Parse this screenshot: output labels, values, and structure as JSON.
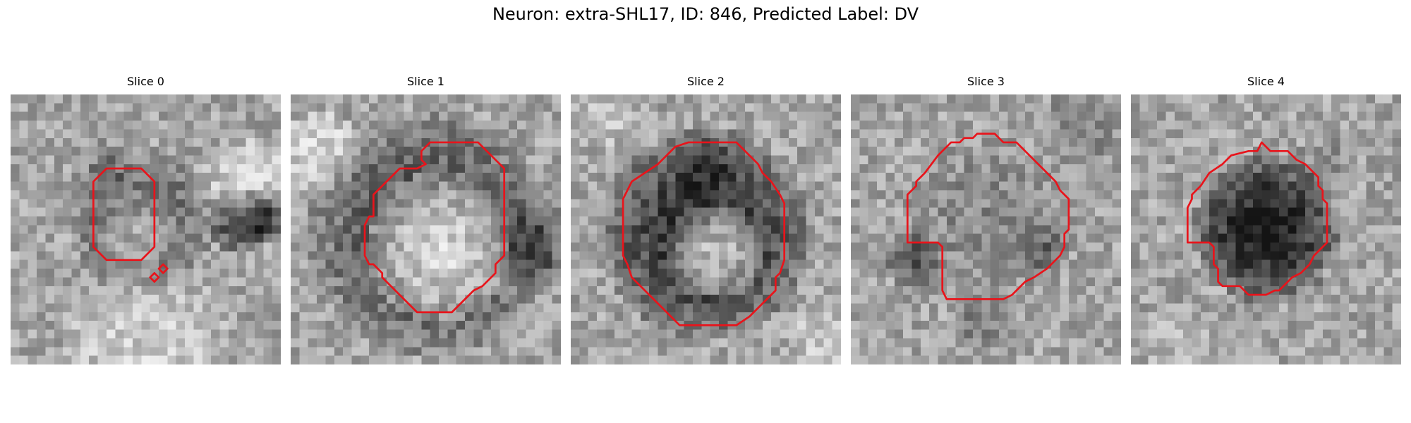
{
  "title": "Neuron: extra-SHL17, ID: 846, Predicted Label: DV",
  "contour_color": "#e8141b",
  "panels": [
    {
      "label": "Slice 0",
      "seed": 11,
      "blobs": [
        {
          "cx": 14.5,
          "cy": 14,
          "r": 8.5,
          "delta": -55
        },
        {
          "cx": 27,
          "cy": 9.5,
          "r": 5.5,
          "delta": 40
        },
        {
          "cx": 10,
          "cy": 8,
          "r": 4,
          "delta": -20
        },
        {
          "cx": 14,
          "cy": 15,
          "r": 4.5,
          "delta": 55
        },
        {
          "cx": 26,
          "cy": 14,
          "r": 4,
          "delta": -80
        },
        {
          "cx": 30,
          "cy": 13.5,
          "r": 3.5,
          "delta": -70
        },
        {
          "cx": 15,
          "cy": 29,
          "r": 10,
          "delta": 35
        }
      ],
      "contours": [
        [
          [
            9.5,
            10
          ],
          [
            11,
            8.5
          ],
          [
            15,
            8.5
          ],
          [
            16.5,
            10
          ],
          [
            16.5,
            17.5
          ],
          [
            15,
            19
          ],
          [
            11,
            19
          ],
          [
            9.5,
            17.5
          ]
        ],
        [
          [
            16,
            21
          ],
          [
            16.5,
            20.5
          ],
          [
            17,
            21
          ],
          [
            16.5,
            21.5
          ]
        ],
        [
          [
            17,
            20
          ],
          [
            17.5,
            19.5
          ],
          [
            18,
            20
          ],
          [
            17.5,
            20.5
          ]
        ]
      ]
    },
    {
      "label": "Slice 1",
      "seed": 23,
      "blobs": [
        {
          "cx": 15.5,
          "cy": 15.5,
          "r": 14,
          "delta": -75
        },
        {
          "cx": 16.5,
          "cy": 17,
          "r": 8.5,
          "delta": 110
        },
        {
          "cx": 28,
          "cy": 17,
          "r": 5,
          "delta": -55
        },
        {
          "cx": 3,
          "cy": 6,
          "r": 5,
          "delta": 45
        }
      ],
      "contours": [
        [
          [
            15,
            6.5
          ],
          [
            16,
            5.5
          ],
          [
            21.5,
            5.5
          ],
          [
            22.5,
            6.5
          ],
          [
            23.5,
            7.5
          ],
          [
            24.5,
            8.5
          ],
          [
            24.5,
            18.5
          ],
          [
            23.5,
            19.5
          ],
          [
            23.5,
            20.5
          ],
          [
            22,
            22
          ],
          [
            21,
            22.5
          ],
          [
            19.5,
            24
          ],
          [
            18.5,
            25
          ],
          [
            14.5,
            25
          ],
          [
            12.5,
            23
          ],
          [
            10.5,
            21
          ],
          [
            10.5,
            20.5
          ],
          [
            9.5,
            19.5
          ],
          [
            9,
            19.5
          ],
          [
            8.5,
            18.5
          ],
          [
            8.5,
            15
          ],
          [
            9,
            14
          ],
          [
            9.5,
            14
          ],
          [
            9.5,
            11.5
          ],
          [
            11,
            10
          ],
          [
            12.5,
            8.5
          ],
          [
            14.5,
            8.5
          ],
          [
            15.5,
            8
          ],
          [
            15,
            7.5
          ]
        ]
      ]
    },
    {
      "label": "Slice 2",
      "seed": 37,
      "blobs": [
        {
          "cx": 15,
          "cy": 15.5,
          "r": 12,
          "delta": -105
        },
        {
          "cx": 16,
          "cy": 17.5,
          "r": 5.5,
          "delta": 120
        },
        {
          "cx": 15,
          "cy": 8,
          "r": 4,
          "delta": -25
        },
        {
          "cx": 3,
          "cy": 2,
          "r": 4,
          "delta": 30
        },
        {
          "cx": 28,
          "cy": 28,
          "r": 4,
          "delta": 30
        }
      ],
      "contours": [
        [
          [
            10,
            8
          ],
          [
            12,
            6
          ],
          [
            13.5,
            5.5
          ],
          [
            19,
            5.5
          ],
          [
            19.5,
            6
          ],
          [
            21.5,
            8
          ],
          [
            22,
            9
          ],
          [
            23,
            10
          ],
          [
            24,
            11.5
          ],
          [
            24.5,
            12.5
          ],
          [
            24.5,
            19
          ],
          [
            24,
            20.5
          ],
          [
            23.5,
            21
          ],
          [
            23.5,
            22.5
          ],
          [
            22,
            24
          ],
          [
            20.5,
            25.5
          ],
          [
            19,
            26.5
          ],
          [
            12.5,
            26.5
          ],
          [
            10,
            24
          ],
          [
            8.5,
            22.5
          ],
          [
            7,
            21
          ],
          [
            6.5,
            19.5
          ],
          [
            6,
            18.5
          ],
          [
            6,
            12
          ],
          [
            7,
            10
          ]
        ]
      ]
    },
    {
      "label": "Slice 3",
      "seed": 53,
      "blobs": [
        {
          "cx": 15,
          "cy": 14,
          "r": 9.5,
          "delta": -25
        },
        {
          "cx": 6.5,
          "cy": 18.5,
          "r": 3.5,
          "delta": -60
        },
        {
          "cx": 21.5,
          "cy": 17.5,
          "r": 3,
          "delta": -45
        },
        {
          "cx": 15,
          "cy": 25.5,
          "r": 4,
          "delta": -35
        },
        {
          "cx": 26,
          "cy": 3,
          "r": 5,
          "delta": -25
        }
      ],
      "contours": [
        [
          [
            10,
            7
          ],
          [
            11.5,
            5.5
          ],
          [
            12.5,
            5.5
          ],
          [
            13,
            5
          ],
          [
            14,
            5
          ],
          [
            14.5,
            4.5
          ],
          [
            16.5,
            4.5
          ],
          [
            17.5,
            5.5
          ],
          [
            19,
            5.5
          ],
          [
            20,
            6.5
          ],
          [
            21,
            7.5
          ],
          [
            22,
            8.5
          ],
          [
            23,
            9.5
          ],
          [
            23.5,
            10
          ],
          [
            24,
            11
          ],
          [
            25,
            12
          ],
          [
            25,
            15.5
          ],
          [
            24.5,
            16
          ],
          [
            24.5,
            17.5
          ],
          [
            24,
            18.5
          ],
          [
            23,
            19.5
          ],
          [
            22.5,
            20
          ],
          [
            21,
            21
          ],
          [
            20,
            21.5
          ],
          [
            19,
            22.5
          ],
          [
            18.5,
            23
          ],
          [
            17.5,
            23.5
          ],
          [
            14,
            23.5
          ],
          [
            11,
            23.5
          ],
          [
            10.5,
            22.5
          ],
          [
            10.5,
            17.5
          ],
          [
            10,
            17
          ],
          [
            6.5,
            17
          ],
          [
            6.5,
            11.5
          ],
          [
            7.5,
            10.5
          ],
          [
            7.5,
            10
          ],
          [
            8.5,
            9
          ]
        ]
      ]
    },
    {
      "label": "Slice 4",
      "seed": 71,
      "blobs": [
        {
          "cx": 15,
          "cy": 15,
          "r": 8.5,
          "delta": -120
        },
        {
          "cx": 22,
          "cy": 8,
          "r": 4,
          "delta": -20
        },
        {
          "cx": 5,
          "cy": 28,
          "r": 5,
          "delta": 15
        }
      ],
      "contours": [
        [
          [
            9,
            9
          ],
          [
            10.5,
            8
          ],
          [
            11.5,
            7
          ],
          [
            13.5,
            6.5
          ],
          [
            14.5,
            6.5
          ],
          [
            15,
            5.5
          ],
          [
            16,
            6.5
          ],
          [
            18,
            6.5
          ],
          [
            19,
            7.5
          ],
          [
            20,
            8
          ],
          [
            21,
            9
          ],
          [
            21.5,
            9.5
          ],
          [
            21.5,
            10.5
          ],
          [
            22,
            11
          ],
          [
            22,
            12
          ],
          [
            22.5,
            12.5
          ],
          [
            22.5,
            17
          ],
          [
            21.5,
            18
          ],
          [
            21,
            18.5
          ],
          [
            20.5,
            19.5
          ],
          [
            19.5,
            20.5
          ],
          [
            18.5,
            21
          ],
          [
            17.5,
            22
          ],
          [
            17,
            22.5
          ],
          [
            16.5,
            22.5
          ],
          [
            15.5,
            23
          ],
          [
            13.5,
            23
          ],
          [
            12.5,
            22
          ],
          [
            10.5,
            22
          ],
          [
            10,
            21.5
          ],
          [
            10,
            20
          ],
          [
            9.5,
            19.5
          ],
          [
            9.5,
            17.5
          ],
          [
            9,
            17
          ],
          [
            6.5,
            17
          ],
          [
            6.5,
            13
          ],
          [
            7,
            12
          ],
          [
            7,
            11.5
          ],
          [
            8,
            10.5
          ]
        ]
      ]
    }
  ]
}
